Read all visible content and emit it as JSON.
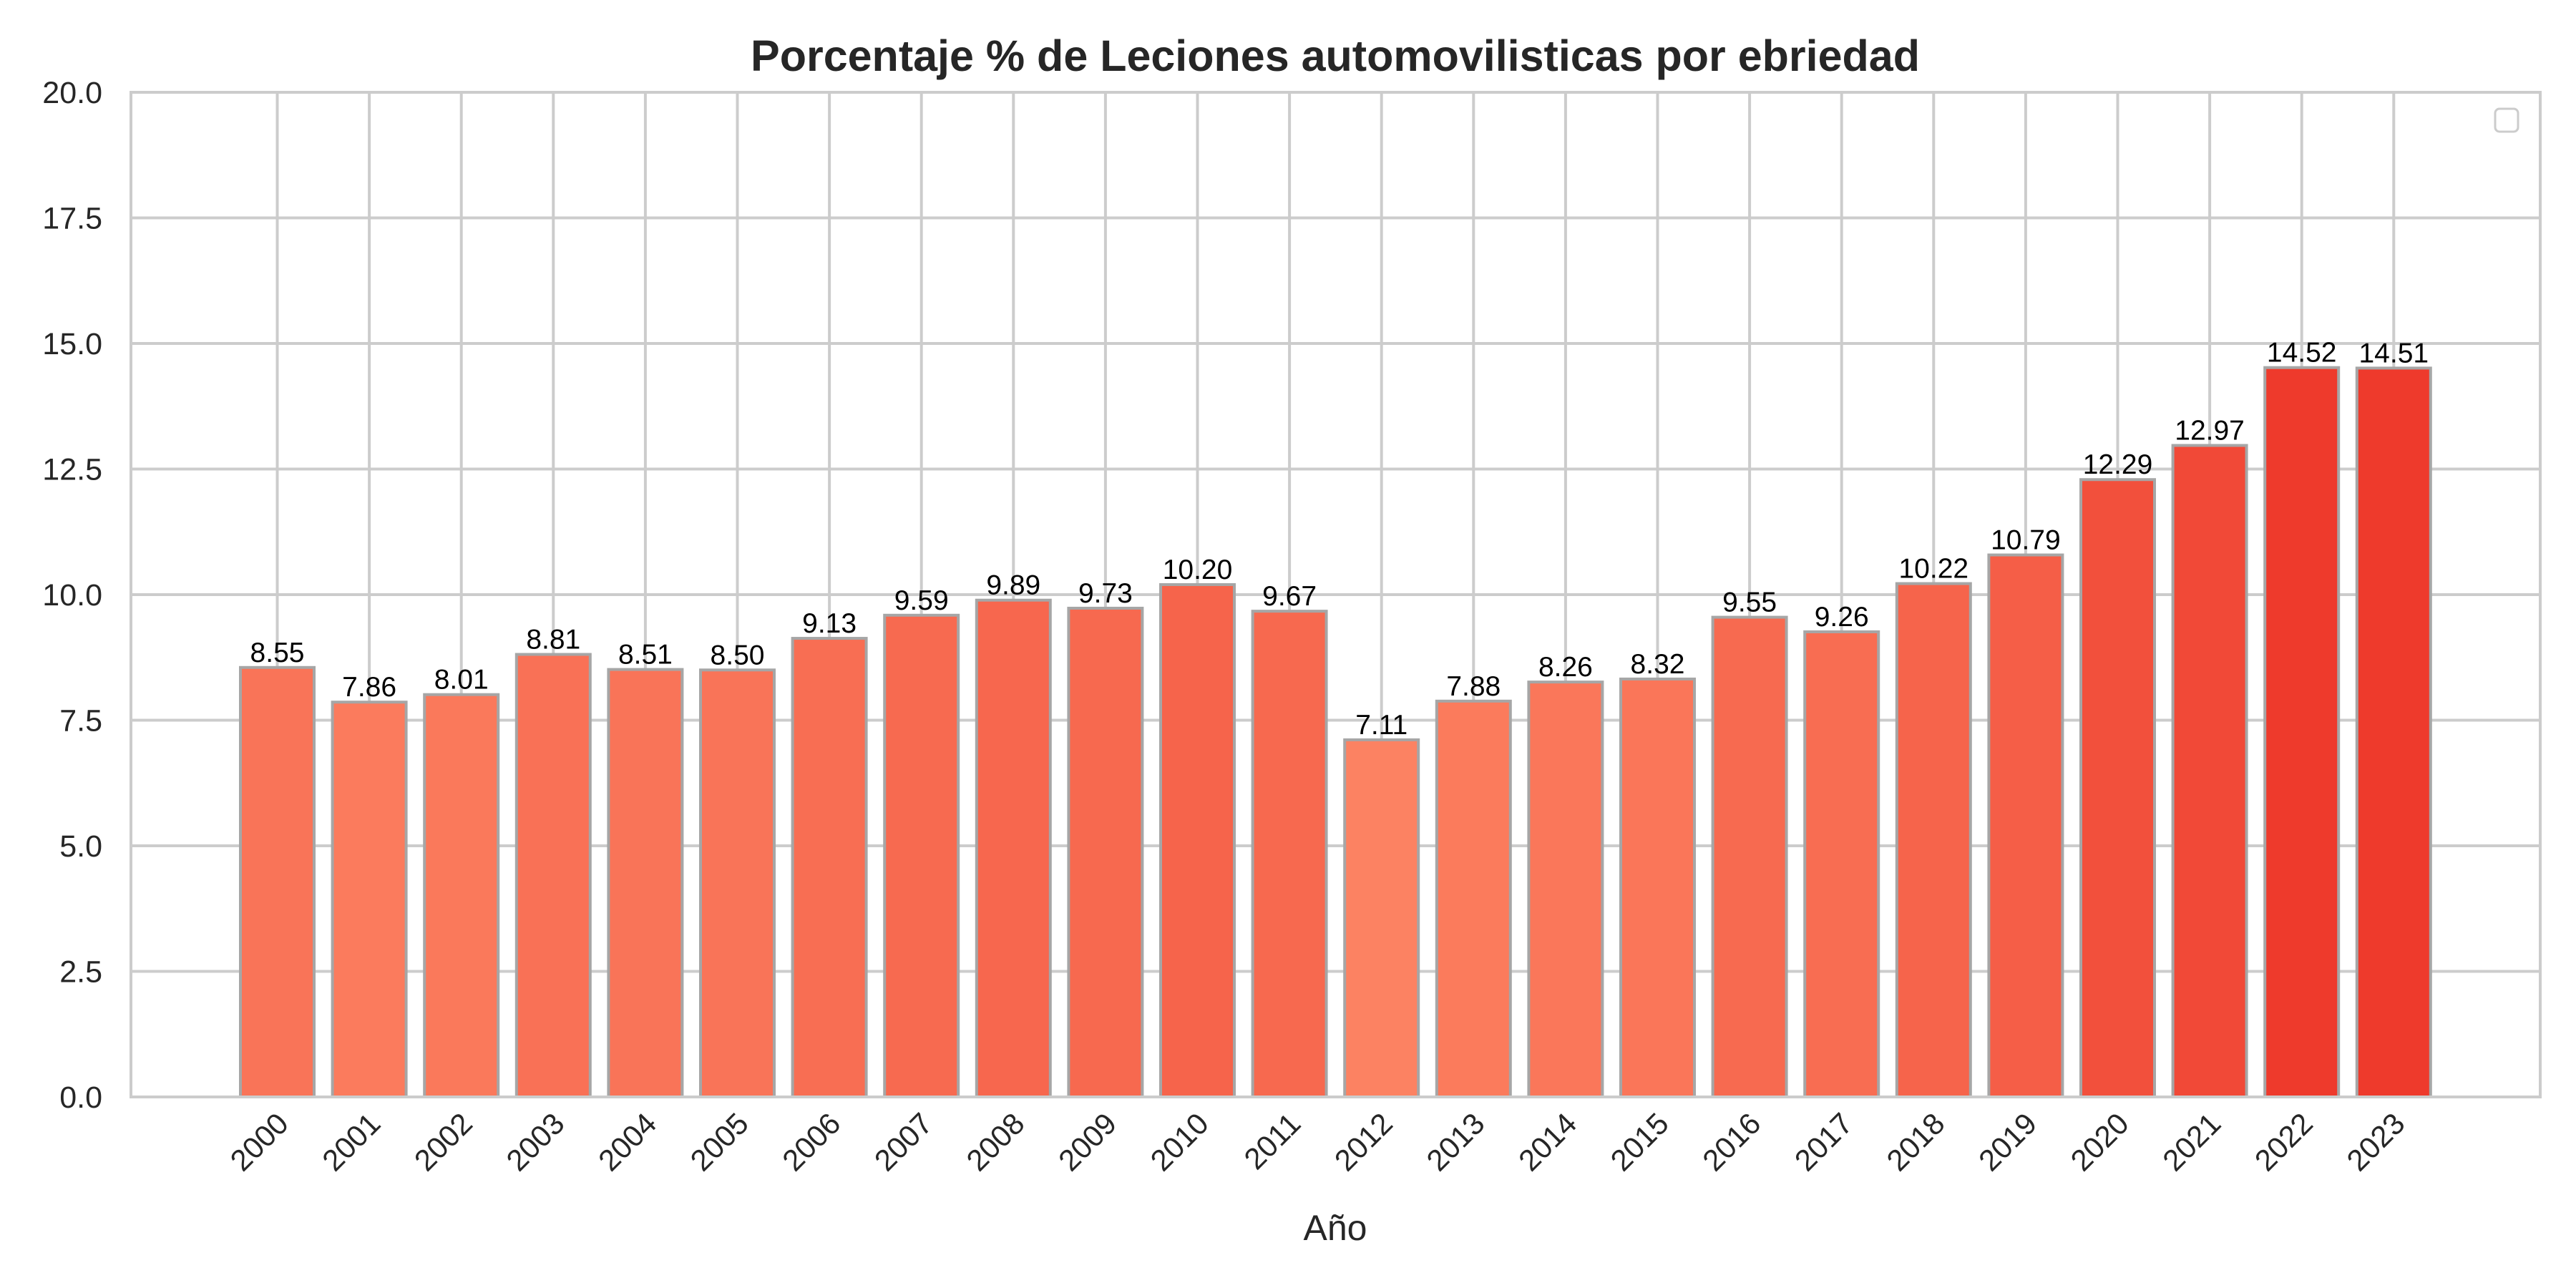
{
  "chart_data": {
    "type": "bar",
    "title": "Porcentaje % de Leciones automovilisticas por ebriedad",
    "xlabel": "Año",
    "ylabel": "",
    "ylim": [
      0,
      20
    ],
    "yticks": [
      "0.0",
      "2.5",
      "5.0",
      "7.5",
      "10.0",
      "12.5",
      "15.0",
      "17.5",
      "20.0"
    ],
    "grid": true,
    "legend": "top-right (empty)",
    "categories": [
      "2000",
      "2001",
      "2002",
      "2003",
      "2004",
      "2005",
      "2006",
      "2007",
      "2008",
      "2009",
      "2010",
      "2011",
      "2012",
      "2013",
      "2014",
      "2015",
      "2016",
      "2017",
      "2018",
      "2019",
      "2020",
      "2021",
      "2022",
      "2023"
    ],
    "values": [
      8.55,
      7.86,
      8.01,
      8.81,
      8.51,
      8.5,
      9.13,
      9.59,
      9.89,
      9.73,
      10.2,
      9.67,
      7.11,
      7.88,
      8.26,
      8.32,
      9.55,
      9.26,
      10.22,
      10.79,
      12.29,
      12.97,
      14.52,
      14.51
    ],
    "value_labels": [
      "8.55",
      "7.86",
      "8.01",
      "8.81",
      "8.51",
      "8.50",
      "9.13",
      "9.59",
      "9.89",
      "9.73",
      "10.20",
      "9.67",
      "7.11",
      "7.88",
      "8.26",
      "8.32",
      "9.55",
      "9.26",
      "10.22",
      "10.79",
      "12.29",
      "12.97",
      "14.52",
      "14.51"
    ],
    "colormap": "Reds (value-scaled)",
    "color_low": "#fc8262",
    "color_high": "#ee3a2c"
  }
}
